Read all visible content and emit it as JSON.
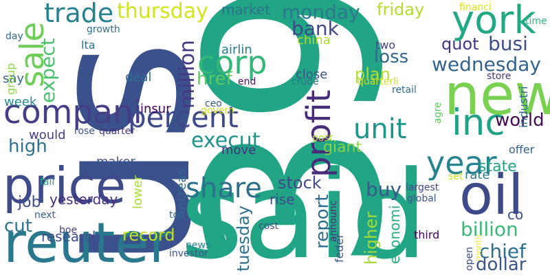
{
  "words": [
    {
      "text": "39",
      "color": "#21a585"
    },
    {
      "text": "us",
      "color": "#3b518b"
    },
    {
      "text": "said",
      "color": "#21a585"
    },
    {
      "text": "new",
      "color": "#7ad151"
    },
    {
      "text": "oil",
      "color": "#3e4989"
    },
    {
      "text": "reuter",
      "color": "#2a788e"
    },
    {
      "text": "price",
      "color": "#3e4a89"
    },
    {
      "text": "compani",
      "color": "#433e85"
    },
    {
      "text": "inc",
      "color": "#1fa187"
    },
    {
      "text": "york",
      "color": "#22a884"
    },
    {
      "text": "year",
      "color": "#25848e"
    },
    {
      "text": "sale",
      "color": "#6ece58"
    },
    {
      "text": "corp",
      "color": "#35b779"
    },
    {
      "text": "profit",
      "color": "#472c7a"
    },
    {
      "text": "percent",
      "color": "#3e4989"
    },
    {
      "text": "unit",
      "color": "#1f968b"
    },
    {
      "text": "share",
      "color": "#2d708e"
    },
    {
      "text": "execut",
      "color": "#20938c"
    },
    {
      "text": "trade",
      "color": "#26828e"
    },
    {
      "text": "thursday",
      "color": "#d2e21b"
    },
    {
      "text": "million",
      "color": "#453781"
    },
    {
      "text": "wednesday",
      "color": "#33638d"
    },
    {
      "text": "billion",
      "color": "#38b977"
    },
    {
      "text": "chief",
      "color": "#2d708e"
    },
    {
      "text": "dollar",
      "color": "#3a548c"
    },
    {
      "text": "world",
      "color": "#450b57"
    },
    {
      "text": "market",
      "color": "#2c728e"
    },
    {
      "text": "monday",
      "color": "#2a778e"
    },
    {
      "text": "bank",
      "color": "#3f4788"
    },
    {
      "text": "friday",
      "color": "#b2dd2d"
    },
    {
      "text": "busi",
      "color": "#3d4e8a"
    },
    {
      "text": "quot",
      "color": "#453581"
    },
    {
      "text": "loss",
      "color": "#31688e"
    },
    {
      "text": "plan",
      "color": "#b0dd2f"
    },
    {
      "text": "two",
      "color": "#414487"
    },
    {
      "text": "href",
      "color": "#5ec962"
    },
    {
      "text": "expect",
      "color": "#4ac16d"
    },
    {
      "text": "high",
      "color": "#2d718e"
    },
    {
      "text": "stock",
      "color": "#3f4889"
    },
    {
      "text": "buy",
      "color": "#375b8d"
    },
    {
      "text": "state",
      "color": "#1fa188"
    },
    {
      "text": "giant",
      "color": "#86d549"
    },
    {
      "text": "report",
      "color": "#2e6d8e"
    },
    {
      "text": "higher",
      "color": "#a5db36"
    },
    {
      "text": "record",
      "color": "#c2df23"
    },
    {
      "text": "tuesday",
      "color": "#2d718e"
    },
    {
      "text": "cut",
      "color": "#2c738e"
    },
    {
      "text": "research",
      "color": "#3e4c8a"
    },
    {
      "text": "job",
      "color": "#3d4d8a"
    },
    {
      "text": "yesterday",
      "color": "#472d7b"
    },
    {
      "text": "rise",
      "color": "#3e4989"
    },
    {
      "text": "rate",
      "color": "#2a768e"
    },
    {
      "text": "co",
      "color": "#3c4f8a"
    },
    {
      "text": "economi",
      "color": "#25ab82"
    },
    {
      "text": "move",
      "color": "#472f7d"
    },
    {
      "text": "increas",
      "color": "#31688e"
    },
    {
      "text": "maker",
      "color": "#3a548c"
    },
    {
      "text": "lower",
      "color": "#a8db34"
    },
    {
      "text": "would",
      "color": "#433e85"
    },
    {
      "text": "say",
      "color": "#32648e"
    },
    {
      "text": "week",
      "color": "#238a8d"
    },
    {
      "text": "group",
      "color": "#8bd646"
    },
    {
      "text": "lta",
      "color": "#2d718e"
    },
    {
      "text": "deal",
      "color": "#2f6c8e"
    },
    {
      "text": "insur",
      "color": "#440154"
    },
    {
      "text": "airlin",
      "color": "#287c8e"
    },
    {
      "text": "china",
      "color": "#addc30"
    },
    {
      "text": "close",
      "color": "#3b528b"
    },
    {
      "text": "industri",
      "color": "#31678e"
    },
    {
      "text": "offer",
      "color": "#33628d"
    },
    {
      "text": "store",
      "color": "#46327e"
    },
    {
      "text": "time",
      "color": "#2fb47c"
    },
    {
      "text": "financi",
      "color": "#d8e219"
    },
    {
      "text": "growth",
      "color": "#2d708e"
    },
    {
      "text": "day",
      "color": "#31688e"
    },
    {
      "text": "end",
      "color": "#471164"
    },
    {
      "text": "crude",
      "color": "#2b758e"
    },
    {
      "text": "quarterli",
      "color": "#d0e11c"
    },
    {
      "text": "retail",
      "color": "#2e6e8e"
    },
    {
      "text": "ceo",
      "color": "#38588c"
    },
    {
      "text": "govern",
      "color": "#cde11d"
    },
    {
      "text": "rose",
      "color": "#3b528b"
    },
    {
      "text": "quarter",
      "color": "#46337f"
    },
    {
      "text": "post",
      "color": "#addc30"
    },
    {
      "text": "agre",
      "color": "#5ec962"
    },
    {
      "text": "fall",
      "color": "#20a386"
    },
    {
      "text": "next",
      "color": "#35608d"
    },
    {
      "text": "boe",
      "color": "#424086"
    },
    {
      "text": "top",
      "color": "#2e6e8e"
    },
    {
      "text": "largest",
      "color": "#3f4889"
    },
    {
      "text": "global",
      "color": "#39568c"
    },
    {
      "text": "set",
      "color": "#cae11f"
    },
    {
      "text": "announc",
      "color": "#472f7d"
    },
    {
      "text": "feder",
      "color": "#3b528b"
    },
    {
      "text": "cost",
      "color": "#3e4a89"
    },
    {
      "text": "news",
      "color": "#26818e"
    },
    {
      "text": "investor",
      "color": "#3b528b"
    },
    {
      "text": "third",
      "color": "#440154"
    },
    {
      "text": "month",
      "color": "#fde725"
    },
    {
      "text": "open",
      "color": "#3e4c8a"
    }
  ]
}
